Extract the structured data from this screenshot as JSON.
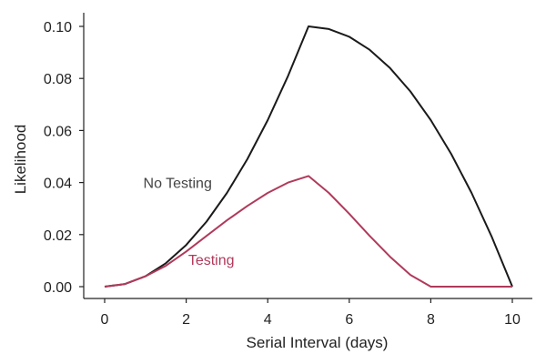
{
  "chart_data": {
    "type": "line",
    "title": "",
    "xlabel": "Serial Interval (days)",
    "ylabel": "Likelihood",
    "xlim": [
      0,
      10
    ],
    "ylim": [
      0,
      0.1
    ],
    "xticks": [
      0,
      2,
      4,
      6,
      8,
      10
    ],
    "xtick_labels": [
      "0",
      "2",
      "4",
      "6",
      "8",
      "10"
    ],
    "yticks": [
      0,
      0.02,
      0.04,
      0.06,
      0.08,
      0.1
    ],
    "ytick_labels": [
      "0.00",
      "0.02",
      "0.04",
      "0.06",
      "0.08",
      "0.10"
    ],
    "grid": false,
    "legend": "none",
    "series": [
      {
        "name": "No Testing",
        "color": "#1a1a1a",
        "x": [
          0,
          0.5,
          1,
          1.5,
          2,
          2.5,
          3,
          3.5,
          4,
          4.5,
          5,
          5.5,
          6,
          6.5,
          7,
          7.5,
          8,
          8.5,
          9,
          9.5,
          10
        ],
        "y": [
          0,
          0.001,
          0.004,
          0.009,
          0.016,
          0.025,
          0.036,
          0.049,
          0.064,
          0.081,
          0.1,
          0.099,
          0.096,
          0.091,
          0.084,
          0.075,
          0.064,
          0.051,
          0.036,
          0.019,
          0
        ]
      },
      {
        "name": "Testing",
        "color": "#b03a5b",
        "x": [
          0,
          0.5,
          1,
          1.5,
          2,
          2.5,
          3,
          3.5,
          4,
          4.5,
          5,
          5.5,
          6,
          6.5,
          7,
          7.5,
          8,
          8.5,
          9,
          9.5,
          10
        ],
        "y": [
          0,
          0.001,
          0.004,
          0.008,
          0.0135,
          0.0195,
          0.0255,
          0.031,
          0.036,
          0.04,
          0.0425,
          0.036,
          0.028,
          0.0195,
          0.0115,
          0.0045,
          0,
          0,
          0,
          0,
          0
        ]
      }
    ],
    "annotations": [
      {
        "text": "No Testing",
        "x": 0.95,
        "y": 0.04,
        "color": "#444444"
      },
      {
        "text": "Testing",
        "x": 2.05,
        "y": 0.0105,
        "color": "#b03a5b"
      }
    ]
  }
}
